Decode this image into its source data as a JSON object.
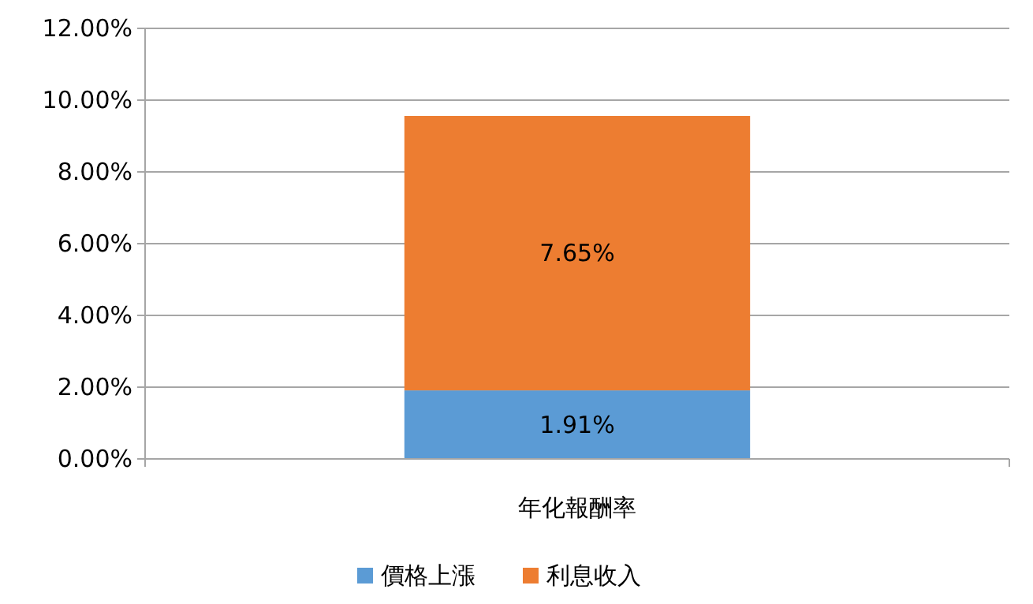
{
  "chart_data": {
    "type": "bar",
    "stacked": true,
    "categories": [
      "年化報酬率"
    ],
    "series": [
      {
        "name": "價格上漲",
        "color": "#5b9bd5",
        "values": [
          1.91
        ],
        "value_labels": [
          "1.91%"
        ]
      },
      {
        "name": "利息收入",
        "color": "#ed7d31",
        "values": [
          7.65
        ],
        "value_labels": [
          "7.65%"
        ]
      }
    ],
    "ylim": [
      0,
      12
    ],
    "yticks": [
      {
        "value": 0,
        "label": "0.00%"
      },
      {
        "value": 2,
        "label": "2.00%"
      },
      {
        "value": 4,
        "label": "4.00%"
      },
      {
        "value": 6,
        "label": "6.00%"
      },
      {
        "value": 8,
        "label": "8.00%"
      },
      {
        "value": 10,
        "label": "10.00%"
      },
      {
        "value": 12,
        "label": "12.00%"
      }
    ],
    "grid": "y",
    "legend": "bottom"
  }
}
